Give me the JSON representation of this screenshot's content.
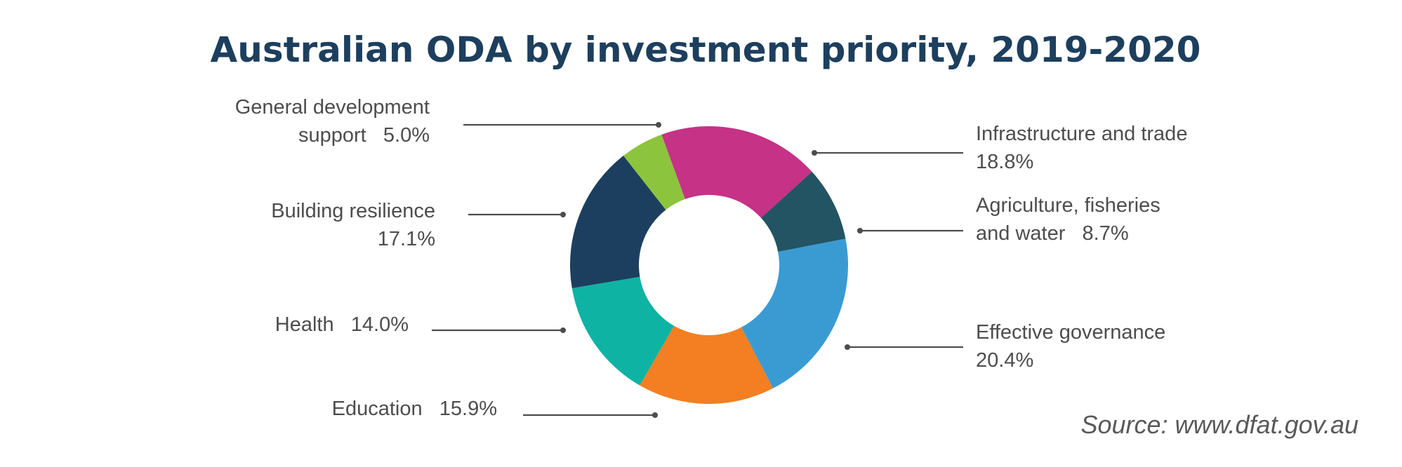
{
  "chart_data": {
    "type": "pie",
    "title": "Australian ODA by investment priority, 2019-2020",
    "source": "Source: www.dfat.gov.au",
    "slices": [
      {
        "category": "Infrastructure and trade",
        "lines": [
          "Infrastructure and trade",
          "18.8%"
        ],
        "value": 18.8,
        "value_label": "18.8%",
        "color": "#c53286"
      },
      {
        "category": "Agriculture, fisheries and water",
        "lines": [
          "Agriculture, fisheries",
          "and water   8.7%"
        ],
        "value": 8.7,
        "value_label": "8.7%",
        "color": "#235463"
      },
      {
        "category": "Effective governance",
        "lines": [
          "Effective governance",
          "20.4%"
        ],
        "value": 20.4,
        "value_label": "20.4%",
        "color": "#3a9bd3"
      },
      {
        "category": "Education",
        "lines": [
          "Education   15.9%"
        ],
        "value": 15.9,
        "value_label": "15.9%",
        "color": "#f37f22"
      },
      {
        "category": "Health",
        "lines": [
          "Health   14.0%"
        ],
        "value": 14.0,
        "value_label": "14.0%",
        "color": "#0eb3a3"
      },
      {
        "category": "Building resilience",
        "lines": [
          "Building resilience",
          "17.1%"
        ],
        "value": 17.1,
        "value_label": "17.1%",
        "color": "#1c3f5f"
      },
      {
        "category": "General development support",
        "lines": [
          "General development",
          "support   5.0%"
        ],
        "value": 5.0,
        "value_label": "5.0%",
        "color": "#8cc43e"
      }
    ]
  }
}
